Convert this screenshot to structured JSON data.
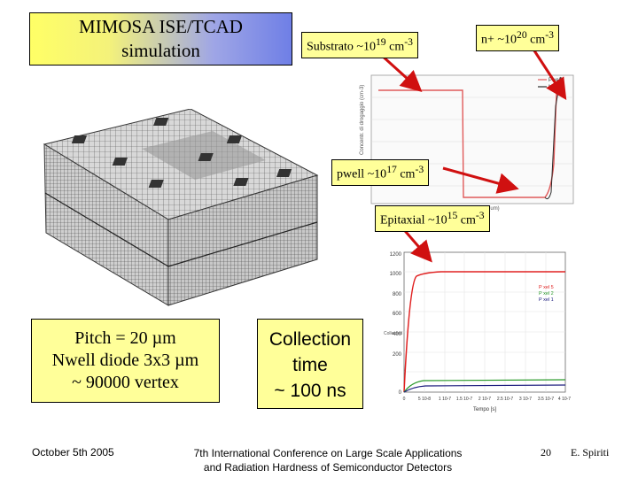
{
  "title": {
    "line1": "MIMOSA ISE/TCAD",
    "line2": "simulation"
  },
  "labels": {
    "substrato": {
      "text": "Substrato ~10",
      "exp": "19",
      "unit": " cm",
      "unit_exp": "-3"
    },
    "nplus": {
      "text": "n+ ~10",
      "exp": "20",
      "unit": " cm",
      "unit_exp": "-3"
    },
    "pwell": {
      "text": "pwell ~10",
      "exp": "17",
      "unit": " cm",
      "unit_exp": "-3"
    },
    "epitaxial": {
      "text": "Epitaxial ~10",
      "exp": "15",
      "unit": " cm",
      "unit_exp": "-3"
    }
  },
  "pitch_box": {
    "line1": "Pitch = 20 µm",
    "line2": "Nwell diode 3x3 µm",
    "line3": "~ 90000 vertex"
  },
  "collection_box": {
    "line1": "Collection",
    "line2": "time",
    "line3": "~ 100 ns"
  },
  "doping_plot": {
    "ylabel": "Concentr. di drogaggio (cm-3)",
    "xlabel": "Spessore Silicio (um)",
    "legend": [
      "Pwell1",
      "Nwell1"
    ],
    "colors": {
      "pwell": "#e05a5a",
      "nwell": "#2a2a2a"
    }
  },
  "collection_plot": {
    "xlabel": "Tempo [s]",
    "ylabel": "Collected",
    "y_ticks": [
      "0",
      "200",
      "400",
      "600",
      "800",
      "1000",
      "1200"
    ],
    "x_ticks": [
      "0",
      "5 10-8",
      "1 10-7",
      "1.5 10-7",
      "2 10-7",
      "2.5 10-7",
      "3 10-7",
      "3.5 10-7",
      "4 10-7"
    ],
    "legend": [
      "P xel 5",
      "P xel 2",
      "P xel 1"
    ],
    "colors": {
      "s1": "#e02020",
      "s2": "#2a9a2a",
      "s3": "#202080"
    }
  },
  "footer": {
    "date": "October 5th 2005",
    "conference_line1": "7th International Conference on Large Scale Applications",
    "conference_line2": "and Radiation Hardness of Semiconductor Detectors",
    "page": "20",
    "author": "E. Spiriti"
  }
}
